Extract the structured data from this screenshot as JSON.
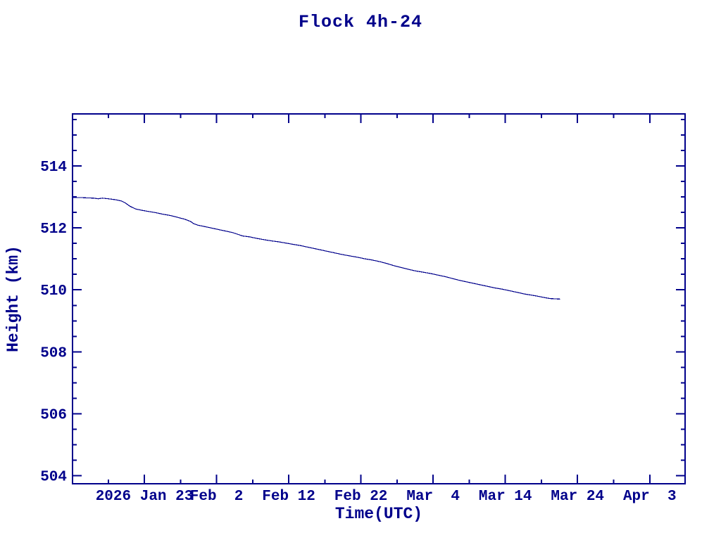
{
  "chart_data": {
    "type": "line",
    "title": "Flock 4h-24",
    "xlabel": "Time(UTC)",
    "ylabel": "Height (km)",
    "color": "#00008B",
    "background": "#FFFFFF",
    "grid": false,
    "legend": "none",
    "x_unit": "day of year 2026",
    "xlim": [
      13.05,
      97.9
    ],
    "ylim": [
      503.74,
      515.68
    ],
    "x_major_ticks": [
      {
        "x": 23,
        "label": "2026 Jan 23"
      },
      {
        "x": 33,
        "label": "Feb  2"
      },
      {
        "x": 43,
        "label": "Feb 12"
      },
      {
        "x": 53,
        "label": "Feb 22"
      },
      {
        "x": 63,
        "label": "Mar  4"
      },
      {
        "x": 73,
        "label": "Mar 14"
      },
      {
        "x": 83,
        "label": "Mar 24"
      },
      {
        "x": 93,
        "label": "Apr  3"
      }
    ],
    "x_minor_ticks": [
      18,
      28,
      38,
      48,
      58,
      68,
      78,
      88
    ],
    "y_major_ticks": [
      {
        "y": 504,
        "label": "504"
      },
      {
        "y": 506,
        "label": "506"
      },
      {
        "y": 508,
        "label": "508"
      },
      {
        "y": 510,
        "label": "510"
      },
      {
        "y": 512,
        "label": "512"
      },
      {
        "y": 514,
        "label": "514"
      }
    ],
    "y_minor_step": 0.5,
    "series": [
      {
        "name": "Flock 4h-24 height",
        "points": [
          [
            13.05,
            512.98
          ],
          [
            14.0,
            512.98
          ],
          [
            15.0,
            512.97
          ],
          [
            16.0,
            512.96
          ],
          [
            16.6,
            512.94
          ],
          [
            17.2,
            512.96
          ],
          [
            18.0,
            512.94
          ],
          [
            19.0,
            512.91
          ],
          [
            19.8,
            512.87
          ],
          [
            20.4,
            512.8
          ],
          [
            21.0,
            512.7
          ],
          [
            21.8,
            512.61
          ],
          [
            22.6,
            512.57
          ],
          [
            23.6,
            512.53
          ],
          [
            24.6,
            512.49
          ],
          [
            25.6,
            512.44
          ],
          [
            26.6,
            512.4
          ],
          [
            27.6,
            512.34
          ],
          [
            28.6,
            512.28
          ],
          [
            29.4,
            512.21
          ],
          [
            29.8,
            512.14
          ],
          [
            30.4,
            512.09
          ],
          [
            31.2,
            512.05
          ],
          [
            32.2,
            512.0
          ],
          [
            33.2,
            511.95
          ],
          [
            34.2,
            511.9
          ],
          [
            35.2,
            511.85
          ],
          [
            36.0,
            511.79
          ],
          [
            36.6,
            511.74
          ],
          [
            37.6,
            511.71
          ],
          [
            38.6,
            511.66
          ],
          [
            39.6,
            511.62
          ],
          [
            40.6,
            511.58
          ],
          [
            41.6,
            511.55
          ],
          [
            42.6,
            511.51
          ],
          [
            43.6,
            511.47
          ],
          [
            44.6,
            511.43
          ],
          [
            45.6,
            511.38
          ],
          [
            46.6,
            511.33
          ],
          [
            47.6,
            511.28
          ],
          [
            48.6,
            511.23
          ],
          [
            49.6,
            511.18
          ],
          [
            50.6,
            511.13
          ],
          [
            51.6,
            511.09
          ],
          [
            52.6,
            511.05
          ],
          [
            53.6,
            511.0
          ],
          [
            54.6,
            510.96
          ],
          [
            55.6,
            510.91
          ],
          [
            56.6,
            510.85
          ],
          [
            57.6,
            510.78
          ],
          [
            58.6,
            510.72
          ],
          [
            59.6,
            510.66
          ],
          [
            60.6,
            510.61
          ],
          [
            61.6,
            510.57
          ],
          [
            62.6,
            510.53
          ],
          [
            63.6,
            510.48
          ],
          [
            64.6,
            510.43
          ],
          [
            65.6,
            510.37
          ],
          [
            66.6,
            510.31
          ],
          [
            67.6,
            510.26
          ],
          [
            68.6,
            510.21
          ],
          [
            69.6,
            510.16
          ],
          [
            70.6,
            510.11
          ],
          [
            71.6,
            510.06
          ],
          [
            72.6,
            510.02
          ],
          [
            73.6,
            509.97
          ],
          [
            74.6,
            509.92
          ],
          [
            75.6,
            509.87
          ],
          [
            76.6,
            509.83
          ],
          [
            77.6,
            509.79
          ],
          [
            78.4,
            509.75
          ],
          [
            79.2,
            509.72
          ],
          [
            79.9,
            509.71
          ],
          [
            80.6,
            509.7
          ]
        ]
      }
    ]
  }
}
